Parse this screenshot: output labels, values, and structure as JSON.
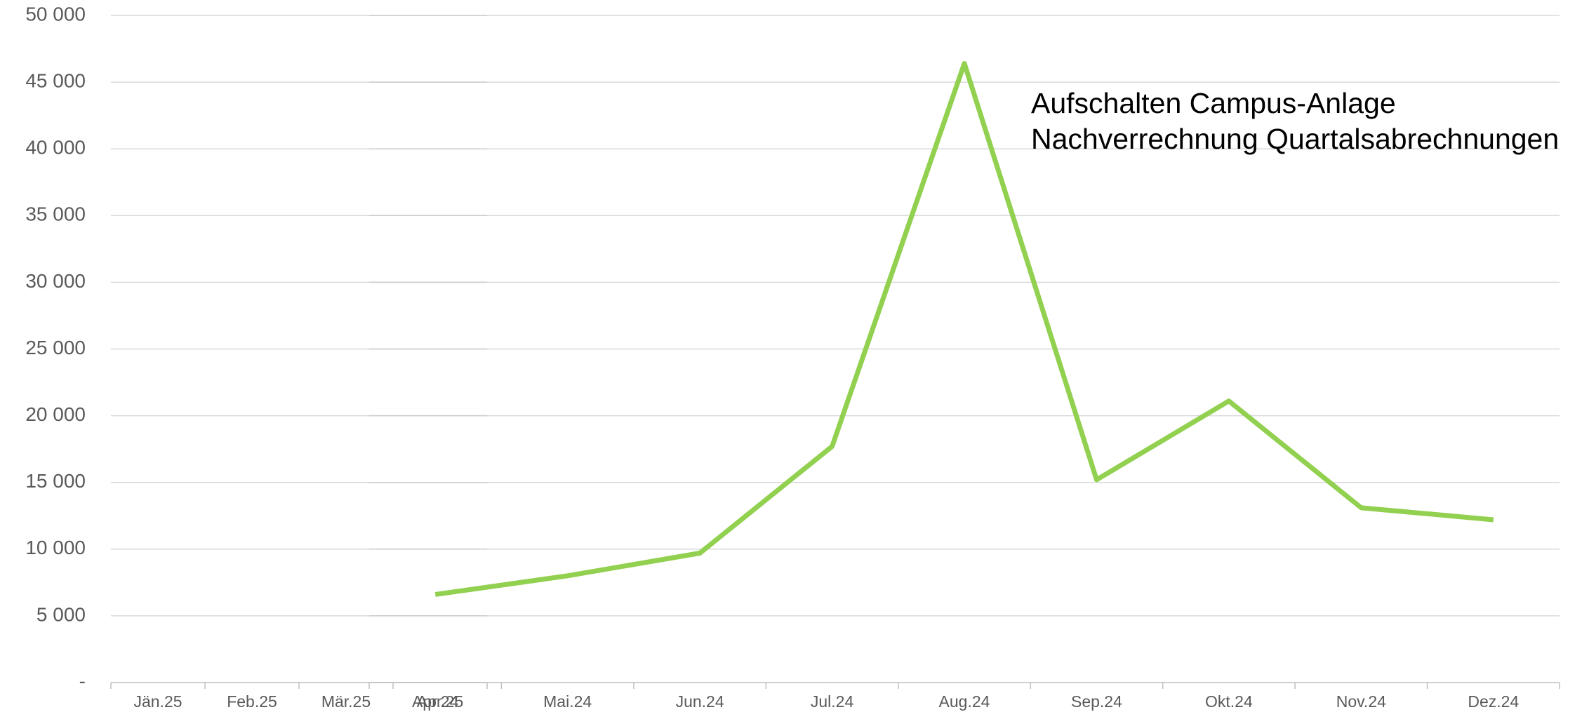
{
  "chart_data": [
    {
      "type": "line",
      "categories": [
        "Jän.25",
        "Feb.25",
        "Mär.25",
        "Apr.25"
      ],
      "ylim": [
        0,
        50000
      ],
      "yticks": [
        {
          "value": 0,
          "label": "-"
        },
        {
          "value": 5000,
          "label": "5 000"
        },
        {
          "value": 10000,
          "label": "10 000"
        },
        {
          "value": 15000,
          "label": "15 000"
        },
        {
          "value": 20000,
          "label": "20 000"
        },
        {
          "value": 25000,
          "label": "25 000"
        },
        {
          "value": 30000,
          "label": "30 000"
        },
        {
          "value": 35000,
          "label": "35 000"
        },
        {
          "value": 40000,
          "label": "40 000"
        },
        {
          "value": 45000,
          "label": "45 000"
        },
        {
          "value": 50000,
          "label": "50 000"
        }
      ],
      "grid": true
    },
    {
      "type": "line",
      "categories": [
        "Apr.24",
        "Mai.24",
        "Jun.24",
        "Jul.24",
        "Aug.24",
        "Sep.24",
        "Okt.24",
        "Nov.24",
        "Dez.24"
      ],
      "ylim": [
        0,
        50000
      ],
      "series": [
        {
          "color": "#92d050",
          "values": [
            6600,
            8000,
            9700,
            17700,
            46400,
            15200,
            21100,
            13100,
            12200
          ]
        }
      ],
      "annotation": [
        "Aufschalten Campus-Anlage",
        "Nachverrechnung Quartalsabrechnungen"
      ],
      "grid": true
    }
  ]
}
